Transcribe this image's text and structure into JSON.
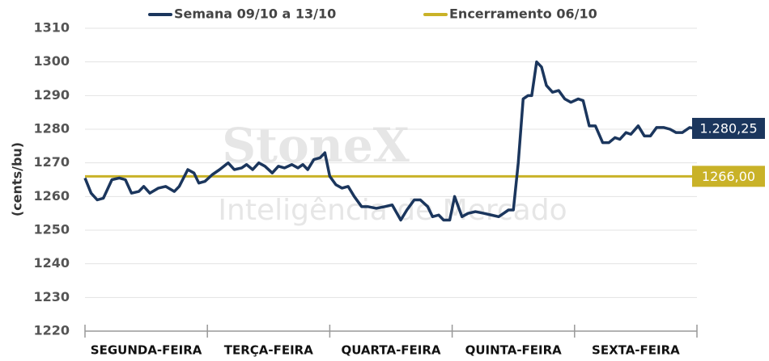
{
  "chart_data": {
    "type": "line",
    "ylabel": "(cents/bu)",
    "watermark": [
      "StoneX",
      "Inteligência de Mercado"
    ],
    "categories": [
      "SEGUNDA-FEIRA",
      "TERÇA-FEIRA",
      "QUARTA-FEIRA",
      "QUINTA-FEIRA",
      "SEXTA-FEIRA"
    ],
    "xlim": [
      0,
      5
    ],
    "xticks": [
      0,
      1,
      2,
      3,
      4,
      5
    ],
    "ylim": [
      1220,
      1310
    ],
    "yticks": [
      1220,
      1230,
      1240,
      1250,
      1260,
      1270,
      1280,
      1290,
      1300,
      1310
    ],
    "grid": true,
    "series": [
      {
        "name": "Semana 09/10 a 13/10",
        "color": "#1b365d",
        "x": [
          0,
          0.05,
          0.1,
          0.15,
          0.22,
          0.28,
          0.33,
          0.38,
          0.44,
          0.48,
          0.53,
          0.6,
          0.66,
          0.73,
          0.77,
          0.84,
          0.89,
          0.93,
          0.98,
          1.04,
          1.1,
          1.17,
          1.22,
          1.28,
          1.32,
          1.37,
          1.42,
          1.47,
          1.53,
          1.58,
          1.63,
          1.69,
          1.74,
          1.78,
          1.82,
          1.87,
          1.92,
          1.96,
          2.0,
          2.05,
          2.1,
          2.15,
          2.2,
          2.26,
          2.31,
          2.38,
          2.45,
          2.51,
          2.58,
          2.63,
          2.69,
          2.74,
          2.8,
          2.84,
          2.89,
          2.93,
          2.98,
          3.02,
          3.08,
          3.13,
          3.19,
          3.26,
          3.32,
          3.38,
          3.42,
          3.46,
          3.5,
          3.54,
          3.58,
          3.62,
          3.65,
          3.69,
          3.73,
          3.77,
          3.82,
          3.87,
          3.92,
          3.97,
          4.03,
          4.07,
          4.12,
          4.17,
          4.23,
          4.28,
          4.33,
          4.37,
          4.42,
          4.46,
          4.52,
          4.57,
          4.62,
          4.67,
          4.73,
          4.78,
          4.83,
          4.88,
          4.94,
          4.98
        ],
        "values": [
          1265.5,
          1261,
          1259,
          1259.5,
          1265,
          1265.5,
          1265,
          1261,
          1261.5,
          1263,
          1261,
          1262.5,
          1263,
          1261.5,
          1263,
          1268,
          1267,
          1264,
          1264.5,
          1266.5,
          1268,
          1270,
          1268,
          1268.5,
          1269.5,
          1268,
          1270,
          1269,
          1267,
          1269,
          1268.5,
          1269.5,
          1268.5,
          1269.5,
          1268,
          1271,
          1271.5,
          1273,
          1266,
          1263.5,
          1262.5,
          1263,
          1260,
          1257,
          1257,
          1256.5,
          1257,
          1257.5,
          1253,
          1256,
          1259,
          1259,
          1257,
          1254,
          1254.5,
          1253,
          1253,
          1260,
          1254,
          1255,
          1255.5,
          1255,
          1254.5,
          1254,
          1255,
          1256,
          1256,
          1270,
          1289,
          1290,
          1290,
          1300,
          1298.5,
          1293,
          1291,
          1291.5,
          1289,
          1288,
          1289,
          1288.5,
          1281,
          1281,
          1276,
          1276,
          1277.5,
          1277,
          1279,
          1278.5,
          1281,
          1278,
          1278,
          1280.5,
          1280.5,
          1280,
          1279,
          1279,
          1280.5,
          1280.25
        ]
      },
      {
        "name": "Encerramento 06/10",
        "color": "#c9b228",
        "x": [
          0,
          5
        ],
        "values": [
          1266,
          1266
        ]
      }
    ],
    "annotations": [
      {
        "text": "1.280,25",
        "value": 1280.25,
        "color": "#1b365d"
      },
      {
        "text": "1266,00",
        "value": 1266,
        "color": "#c9b228"
      }
    ]
  }
}
